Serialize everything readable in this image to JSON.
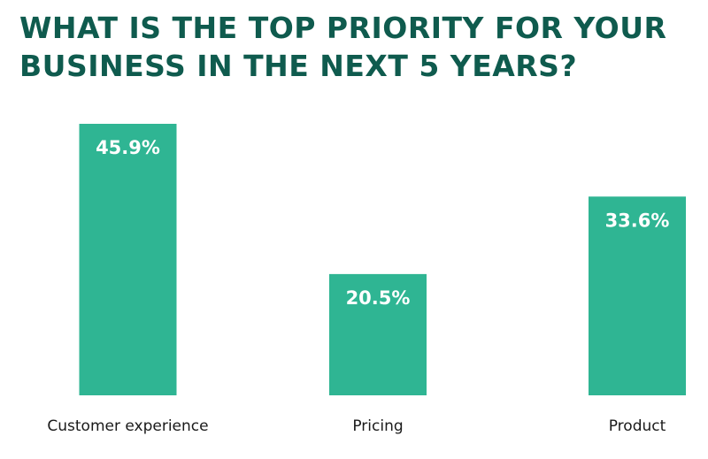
{
  "colors": {
    "title": "#0f5b4e",
    "bar": "#2fb593",
    "bar_label": "#ffffff",
    "category_label": "#1a1a1a",
    "background": "#ffffff"
  },
  "title_lines": [
    "WHAT IS THE TOP PRIORITY FOR YOUR",
    "BUSINESS IN THE NEXT 5 YEARS?"
  ],
  "chart_data": {
    "type": "bar",
    "title": "WHAT IS THE TOP PRIORITY FOR YOUR BUSINESS IN THE NEXT 5 YEARS?",
    "categories": [
      "Customer experience",
      "Pricing",
      "Product"
    ],
    "values": [
      45.9,
      20.5,
      33.6
    ],
    "value_labels": [
      "45.9%",
      "20.5%",
      "33.6%"
    ],
    "unit": "%",
    "xlabel": "",
    "ylabel": "",
    "ylim": [
      0,
      45.9
    ],
    "grid": false,
    "legend": "none"
  }
}
